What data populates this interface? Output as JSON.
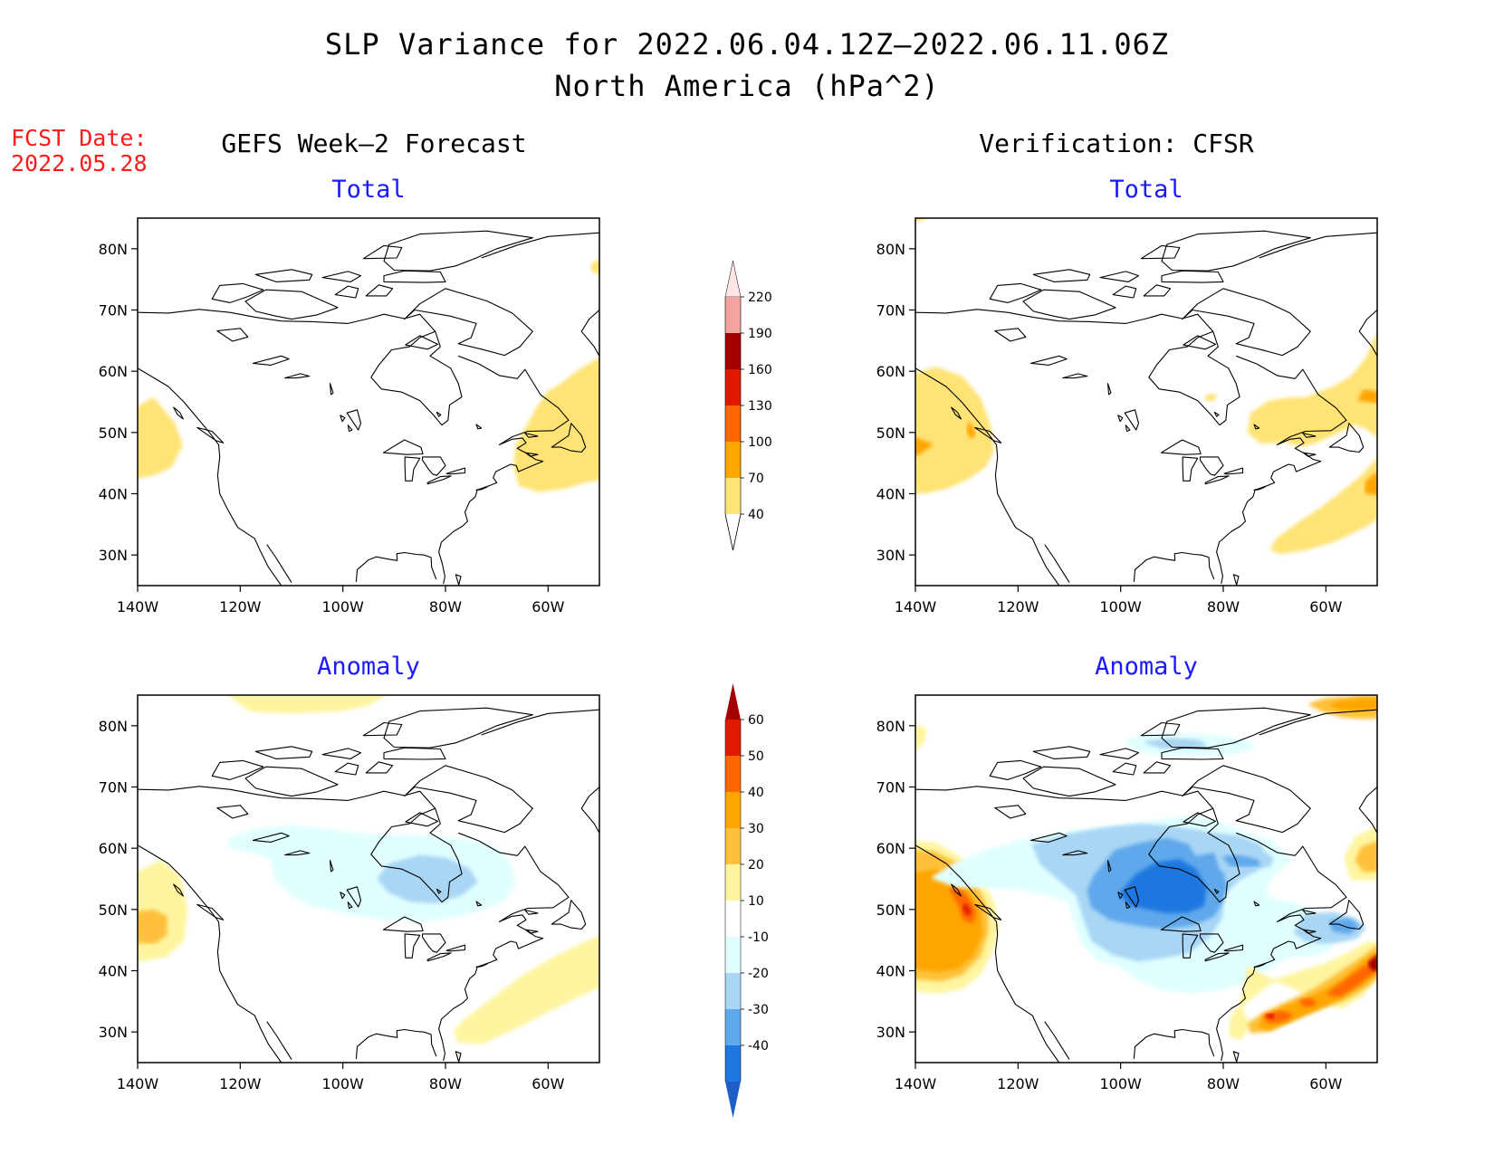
{
  "header": {
    "title": "SLP Variance for 2022.06.04.12Z–2022.06.11.06Z",
    "subtitle": "North America (hPa^2)",
    "fcst_label": "FCST Date:",
    "fcst_date": "2022.05.28",
    "left_column": "GEFS Week–2 Forecast",
    "right_column": "Verification: CFSR"
  },
  "panels": {
    "p1": {
      "title": "Total"
    },
    "p2": {
      "title": "Total"
    },
    "p3": {
      "title": "Anomaly"
    },
    "p4": {
      "title": "Anomaly"
    }
  },
  "axes": {
    "lon_ticks": [
      -140,
      -120,
      -100,
      -80,
      -60
    ],
    "lon_labels": [
      "140W",
      "120W",
      "100W",
      "80W",
      "60W"
    ],
    "lat_ticks": [
      80,
      70,
      60,
      50,
      40,
      30
    ],
    "lat_labels": [
      "80N",
      "70N",
      "60N",
      "50N",
      "40N",
      "30N"
    ],
    "lon_range": [
      -140,
      -50
    ],
    "lat_range": [
      25,
      85
    ]
  },
  "colorbars": {
    "total": {
      "labels": [
        "220",
        "190",
        "160",
        "130",
        "100",
        "70",
        "40"
      ],
      "colors": [
        "#ffe6e6",
        "#f4a2a2",
        "#a50000",
        "#e01a00",
        "#ff6600",
        "#ffa500",
        "#ffe375"
      ]
    },
    "anomaly": {
      "labels": [
        "60",
        "50",
        "40",
        "30",
        "20",
        "10",
        "-10",
        "-20",
        "-30",
        "-40"
      ],
      "colors": [
        "#a50000",
        "#e01a00",
        "#ff6600",
        "#ffa500",
        "#ffc13b",
        "#fff5a0",
        "#ffffff",
        "#e0ffff",
        "#a9d6f5",
        "#5fa8ec",
        "#1f78e0",
        "#1e5cc8"
      ]
    }
  },
  "colors": {
    "total_40_70": "#ffe375",
    "total_70_100": "#ffa500",
    "anom_10_20": "#fff5a0",
    "anom_20_30": "#ffc13b",
    "anom_30_40": "#ffa500",
    "anom_40_50": "#ff6600",
    "anom_50_60": "#e01a00",
    "anom_60p": "#a50000",
    "anom_m10_m20": "#e0ffff",
    "anom_m20_m30": "#a9d6f5",
    "anom_m30_m40": "#5fa8ec",
    "anom_m40_m50": "#1f78e0",
    "anom_m50p": "#1e5cc8",
    "title_blue": "#1a1aff",
    "fcst_red": "#ff1a1a"
  }
}
